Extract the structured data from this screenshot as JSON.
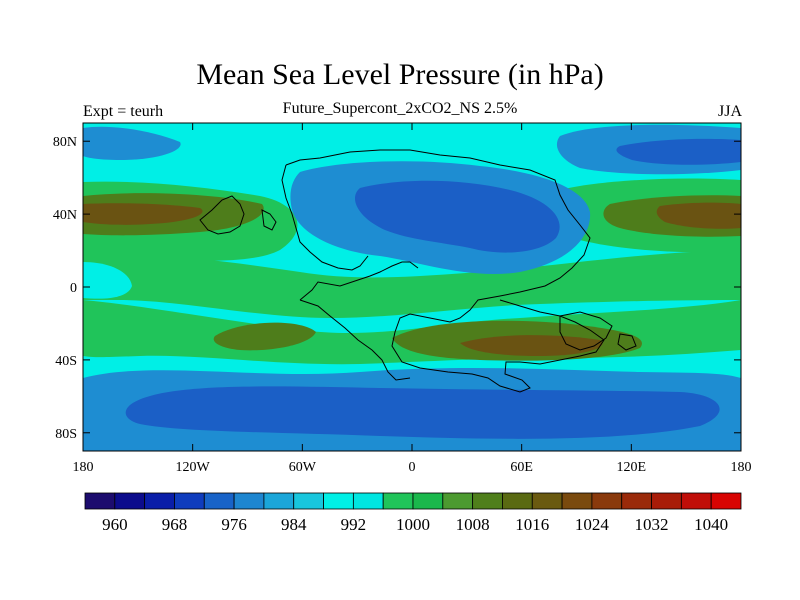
{
  "title": "Mean Sea Level Pressure (in hPa)",
  "subtitle": "Future_Supercont_2xCO2_NS 2.5%",
  "left_label": "Expt = teurh",
  "right_label": "JJA",
  "map": {
    "lon_ticks": [
      "180",
      "120W",
      "60W",
      "0",
      "60E",
      "120E",
      "180"
    ],
    "lat_ticks": [
      "80N",
      "40N",
      "0",
      "40S",
      "80S"
    ],
    "lon_values": [
      -180,
      -120,
      -60,
      0,
      60,
      120,
      180
    ],
    "lat_values": [
      80,
      40,
      0,
      -40,
      -80
    ]
  },
  "colorbar": {
    "labels": [
      "960",
      "968",
      "976",
      "984",
      "992",
      "1000",
      "1008",
      "1016",
      "1024",
      "1032",
      "1040"
    ],
    "colors": [
      "#1c0c6e",
      "#0c0c8c",
      "#0a1ea8",
      "#0f3cbd",
      "#1863c8",
      "#1e86d0",
      "#1ba6d9",
      "#18c6dd",
      "#00f0e6",
      "#00e6e1",
      "#20c45a",
      "#1ab84c",
      "#4c9a30",
      "#4f7f1b",
      "#5a6a12",
      "#6a5a10",
      "#7a4a0e",
      "#8a3a0c",
      "#9a2a0a",
      "#a81c08",
      "#c00e08",
      "#d80402"
    ],
    "field_colors": {
      "deep_low": "#1b5fc6",
      "low": "#1e8dd2",
      "mid": "#1bb6dd",
      "cyan": "#00efe6",
      "green": "#20c45a",
      "olive": "#4e7d1b",
      "brown": "#6a5312"
    }
  }
}
